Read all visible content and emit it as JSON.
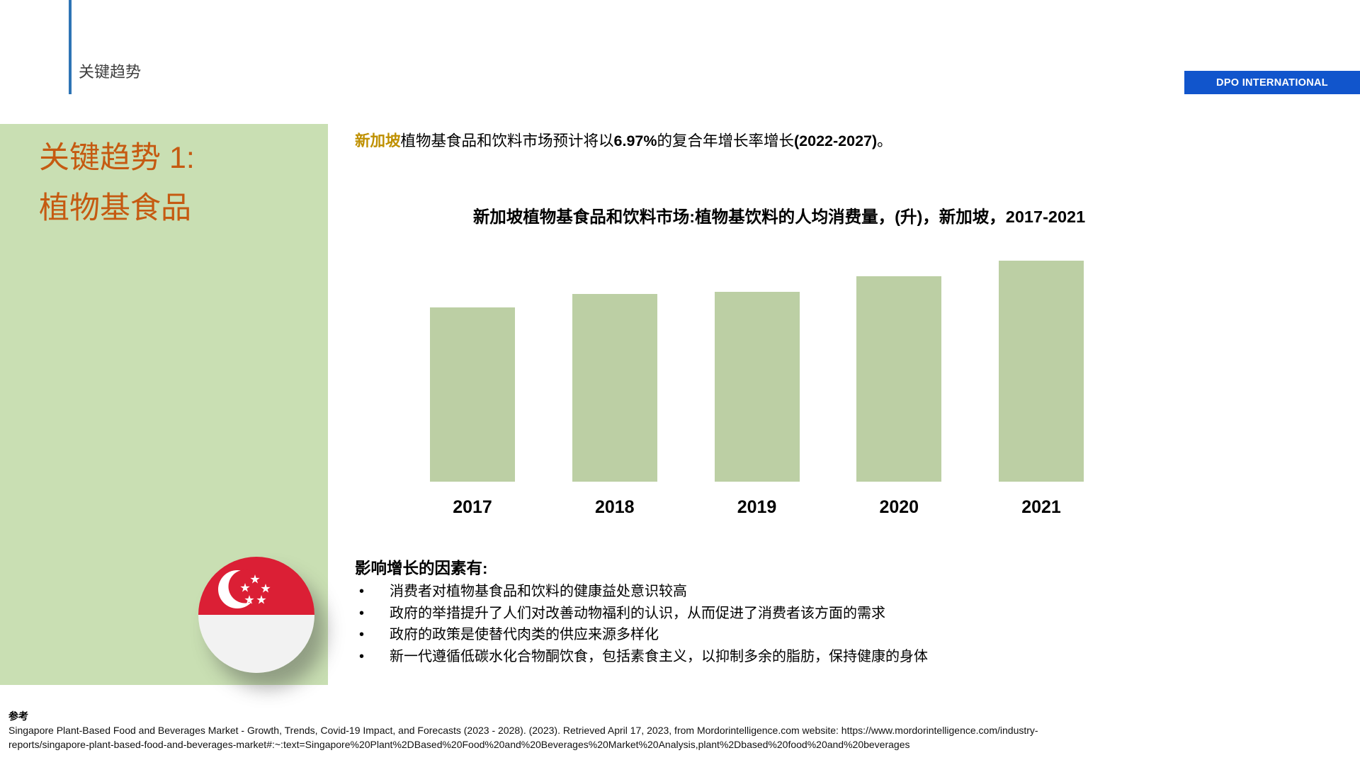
{
  "header": {
    "section_label": "关键趋势",
    "brand_badge": "DPO INTERNATIONAL"
  },
  "sidebar": {
    "title_line1": "关键趋势 1:",
    "title_line2": "植物基食品",
    "flag_icon": "singapore-flag-icon"
  },
  "intro": {
    "highlight": "新加坡",
    "segment1": "植物基食品和饮料市场预计将以",
    "cagr": "6.97%",
    "segment2": "的复合年增长率增长",
    "period": "(2022-2027)",
    "full_stop": "。"
  },
  "chart_data": {
    "type": "bar",
    "title": "新加坡植物基食品和饮料市场:植物基饮料的人均消费量，(升)，新加坡，2017-2021",
    "categories": [
      "2017",
      "2018",
      "2019",
      "2020",
      "2021"
    ],
    "values": [
      79,
      85,
      86,
      93,
      100
    ],
    "values_note": "no y-axis or data labels shown; values estimated from relative bar heights with 2021 = 100",
    "unit": "升",
    "bar_color": "#BCCFA4",
    "gridlines": false,
    "legend": "none",
    "y_axis_shown": false
  },
  "factors": {
    "heading": "影响增长的因素有:",
    "items": [
      "消费者对植物基食品和饮料的健康益处意识较高",
      "政府的举措提升了人们对改善动物福利的认识，从而促进了消费者该方面的需求",
      "政府的政策是使替代肉类的供应来源多样化",
      "新一代遵循低碳水化合物酮饮食，包括素食主义，以抑制多余的脂肪，保持健康的身体"
    ]
  },
  "footer": {
    "label": "参考",
    "citation_lines": [
      "Singapore Plant-Based Food and Beverages Market - Growth, Trends, Covid-19 Impact, and Forecasts (2023 - 2028). (2023). Retrieved April 17, 2023, from Mordorintelligence.com website: https://www.mordorintelligence.com/industry-",
      "reports/singapore-plant-based-food-and-beverages-market#:~:text=Singapore%20Plant%2DBased%20Food%20and%20Beverages%20Market%20Analysis,plant%2Dbased%20food%20and%20beverages"
    ]
  },
  "colors": {
    "accent_blue": "#2E74B5",
    "badge_blue": "#1155CC",
    "panel_green": "#C9DFB3",
    "bar_green": "#BCCFA4",
    "title_orange": "#C55A11",
    "highlight_gold": "#BF9000",
    "flag_red": "#DB1F35"
  }
}
